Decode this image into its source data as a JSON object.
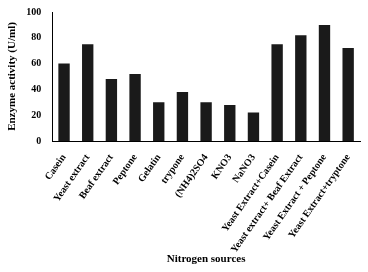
{
  "chart_data": {
    "type": "bar",
    "x_label": "Nitrogen sources",
    "y_label": "Enzyme activity (U/ml)",
    "categories": [
      "Casein",
      "Yeast extract",
      "Beaf extract",
      "Peptone",
      "Gelatin",
      "trypone",
      "(NH4)2SO4",
      "KNO3",
      "NaNO3",
      "Yeast Extract+Casein",
      "Yeast extract+ Beaf Extract",
      "Yeast Extract + Peptone",
      "Yeast Extract+tryptone"
    ],
    "values": [
      60,
      75,
      48,
      52,
      30,
      38,
      30,
      28,
      22,
      75,
      82,
      90,
      72
    ],
    "color": "#1a1a1a",
    "ylim": [
      0,
      100
    ],
    "yticks": [
      0,
      20,
      40,
      60,
      80,
      100
    ],
    "grid": false
  }
}
